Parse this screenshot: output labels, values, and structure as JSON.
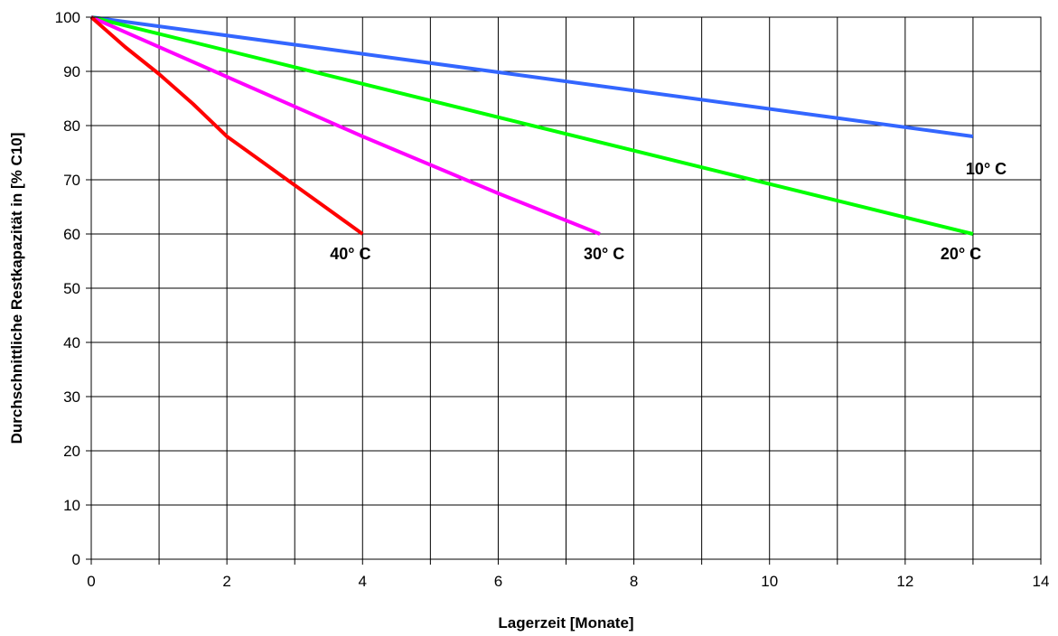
{
  "chart_data": {
    "type": "line",
    "title": "",
    "xlabel": "Lagerzeit [Monate]",
    "ylabel": "Durchschnittliche Restkapazität in [% C10]",
    "xlim": [
      0,
      14
    ],
    "ylim": [
      0,
      100
    ],
    "xticks": [
      0,
      2,
      4,
      6,
      8,
      10,
      12,
      14
    ],
    "yticks": [
      0,
      10,
      20,
      30,
      40,
      50,
      60,
      70,
      80,
      90,
      100
    ],
    "x_gridlines": [
      0,
      1,
      2,
      3,
      4,
      5,
      6,
      7,
      8,
      9,
      10,
      11,
      12,
      13,
      14
    ],
    "grid": true,
    "legend": "none",
    "series": [
      {
        "label": "10° C",
        "color": "#3366ff",
        "points": [
          [
            0,
            100
          ],
          [
            13,
            78
          ]
        ]
      },
      {
        "label": "20° C",
        "color": "#00ff00",
        "points": [
          [
            0,
            100
          ],
          [
            13,
            60
          ]
        ]
      },
      {
        "label": "30° C",
        "color": "#ff00ff",
        "points": [
          [
            0,
            100
          ],
          [
            2,
            89
          ],
          [
            4,
            78
          ],
          [
            6,
            67.5
          ],
          [
            7.5,
            60
          ]
        ]
      },
      {
        "label": "40° C",
        "color": "#ff0000",
        "points": [
          [
            0,
            100
          ],
          [
            0.5,
            94.5
          ],
          [
            1,
            89.5
          ],
          [
            1.5,
            84
          ],
          [
            2,
            78
          ],
          [
            2.5,
            73.5
          ],
          [
            3,
            69
          ],
          [
            3.5,
            64.5
          ],
          [
            4,
            60
          ]
        ]
      }
    ]
  }
}
